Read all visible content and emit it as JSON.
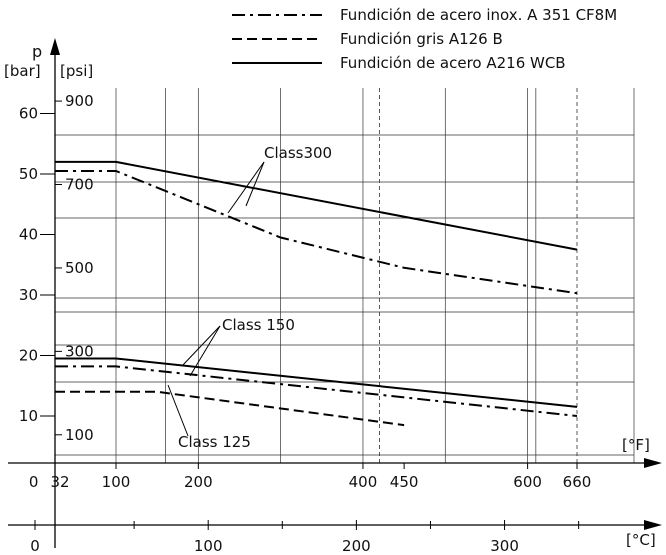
{
  "chart_data": {
    "type": "line",
    "y_axis_symbol": "p",
    "y_unit_bar": "[bar]",
    "y_unit_psi": "[psi]",
    "x_unit_f": "[°F]",
    "x_unit_c": "[°C]",
    "bar_ticks": [
      "10",
      "20",
      "30",
      "40",
      "50",
      "60"
    ],
    "bar_tick_values": [
      10,
      20,
      30,
      40,
      50,
      60
    ],
    "psi_ticks": [
      "100",
      "300",
      "500",
      "700",
      "900"
    ],
    "psi_tick_values": [
      100,
      300,
      500,
      700,
      900
    ],
    "f_ticks": [
      "0",
      "32",
      "100",
      "200",
      "400",
      "450",
      "600",
      "660"
    ],
    "f_tick_values": [
      0,
      32,
      100,
      200,
      400,
      450,
      600,
      660
    ],
    "c_ticks": [
      "0",
      "100",
      "200",
      "300"
    ],
    "c_tick_values": [
      0,
      100,
      200,
      300
    ],
    "ylim_bar": [
      0,
      62
    ],
    "xlim_f": [
      0,
      660
    ],
    "grid": true,
    "legend_position": "top-right",
    "series": [
      {
        "name": "Fundición de acero inox. A 351 CF8M",
        "style": "dashdot",
        "group": "Class300",
        "x": [
          -50,
          100,
          300,
          450,
          660
        ],
        "y": [
          50.5,
          50.5,
          39.5,
          34.5,
          30.3
        ]
      },
      {
        "name": "Fundición gris A126 B",
        "style": "dash",
        "group": "Class 125",
        "x": [
          -50,
          150,
          450
        ],
        "y": [
          14,
          14,
          8.5
        ]
      },
      {
        "name": "Fundición de acero A216 WCB",
        "style": "solid",
        "group": "Class300",
        "x": [
          -50,
          100,
          660
        ],
        "y": [
          52,
          52,
          37.5
        ]
      },
      {
        "name": "Fundición de acero A216 WCB",
        "style": "solid",
        "group": "Class 150",
        "x": [
          -50,
          100,
          660
        ],
        "y": [
          19.5,
          19.5,
          11.5
        ]
      },
      {
        "name": "Fundición de acero inox. A 351 CF8M",
        "style": "dashdot",
        "group": "Class 150",
        "x": [
          -50,
          100,
          660
        ],
        "y": [
          18.2,
          18.2,
          10
        ]
      }
    ],
    "annotations": [
      "Class300",
      "Class 150",
      "Class 125"
    ]
  }
}
